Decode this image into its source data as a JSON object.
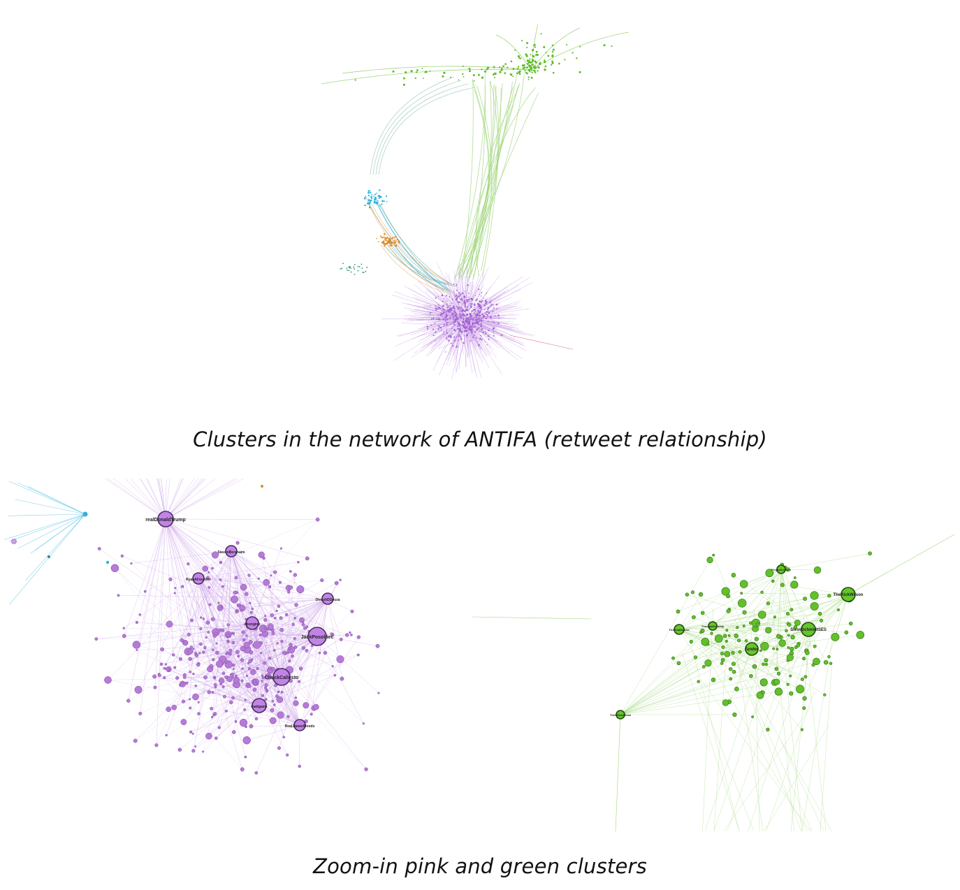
{
  "figure": {
    "top_caption": "Clusters in the network of ANTIFA (retweet relationship)",
    "bottom_caption": "Zoom-in pink and green clusters"
  },
  "colors": {
    "purple": "#a060d0",
    "purple_edge": "#c89ae6",
    "green": "#5bbd22",
    "green_edge": "#9fd67a",
    "blue": "#2fb3df",
    "orange": "#e08a2a",
    "teal": "#2f8f7a"
  },
  "top_graph": {
    "clusters": [
      {
        "name": "green",
        "color_key": "green"
      },
      {
        "name": "blue",
        "color_key": "blue"
      },
      {
        "name": "orange",
        "color_key": "orange"
      },
      {
        "name": "purple",
        "color_key": "purple"
      }
    ]
  },
  "left_graph": {
    "labels": [
      "realDonaldTrump",
      "JackPosobiec",
      "ChuckCallesto",
      "mattgaetz",
      "RyanAFournier",
      "dbongino",
      "StevenBeranaim",
      "DineshDSouza",
      "RealJamesWoods"
    ]
  },
  "right_graph": {
    "labels": [
      "TheRickWilson",
      "SteveSchmidtSES",
      "TheRealHoarse",
      "funder",
      "ThomasKennedy",
      "TheOfficialSean",
      "ProjectLincoln"
    ]
  }
}
